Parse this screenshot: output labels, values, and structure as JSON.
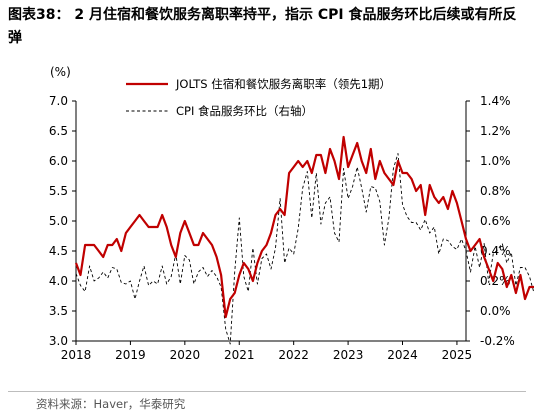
{
  "title": "图表38：  2 月住宿和餐饮服务离职率持平，指示 CPI 食品服务环比后续或有所反弹",
  "source": "资料来源：Haver，华泰研究",
  "colors": {
    "left_series": "#c00000",
    "right_series": "#000000"
  },
  "chart_data": {
    "type": "line",
    "title": "",
    "x_ticks": [
      "2018",
      "2019",
      "2020",
      "2021",
      "2022",
      "2023",
      "2024",
      "2025"
    ],
    "x_range": [
      "2018-01",
      "2025-03"
    ],
    "left_axis": {
      "unit": "(%)",
      "ylim": [
        3.0,
        7.0
      ],
      "ticks": [
        "3.0",
        "3.5",
        "4.0",
        "4.5",
        "5.0",
        "5.5",
        "6.0",
        "6.5",
        "7.0"
      ]
    },
    "right_axis": {
      "ylim": [
        -0.2,
        1.4
      ],
      "ticks": [
        "-0.2%",
        "0.0%",
        "0.2%",
        "0.4%",
        "0.6%",
        "0.8%",
        "1.0%",
        "1.2%",
        "1.4%"
      ]
    },
    "series": [
      {
        "name": "JOLTS 住宿和餐饮服务离职率（领先1期）",
        "axis": "left",
        "style": "solid",
        "start": "2018-01",
        "values": [
          4.3,
          4.1,
          4.6,
          4.6,
          4.6,
          4.5,
          4.4,
          4.6,
          4.6,
          4.7,
          4.5,
          4.8,
          4.9,
          5.0,
          5.1,
          5.0,
          4.9,
          4.9,
          4.9,
          5.1,
          4.9,
          4.6,
          4.4,
          4.8,
          5.0,
          4.8,
          4.6,
          4.6,
          4.8,
          4.7,
          4.6,
          4.4,
          4.1,
          3.4,
          3.7,
          3.8,
          4.1,
          4.3,
          4.2,
          4.0,
          4.3,
          4.5,
          4.6,
          4.8,
          5.1,
          5.2,
          5.1,
          5.8,
          5.9,
          6.0,
          5.9,
          6.0,
          5.8,
          6.1,
          6.1,
          5.8,
          6.2,
          6.0,
          5.7,
          6.4,
          5.9,
          6.1,
          6.3,
          6.0,
          5.8,
          6.2,
          5.7,
          6.0,
          5.8,
          5.7,
          5.6,
          6.0,
          5.8,
          5.8,
          5.7,
          5.5,
          5.6,
          5.1,
          5.6,
          5.4,
          5.3,
          5.4,
          5.2,
          5.5,
          5.3,
          5.0,
          4.7,
          4.5,
          4.6,
          4.7,
          4.4,
          4.2,
          4.0,
          4.3,
          4.2,
          3.9,
          4.1,
          3.8,
          4.1,
          3.7,
          3.9,
          3.9
        ]
      },
      {
        "name": "CPI 食品服务环比（右轴）",
        "axis": "right",
        "style": "dashed",
        "start": "2018-01",
        "values": [
          0.25,
          0.17,
          0.13,
          0.3,
          0.2,
          0.22,
          0.26,
          0.22,
          0.29,
          0.28,
          0.19,
          0.18,
          0.2,
          0.08,
          0.2,
          0.3,
          0.17,
          0.2,
          0.18,
          0.3,
          0.18,
          0.23,
          0.38,
          0.18,
          0.37,
          0.34,
          0.18,
          0.26,
          0.29,
          0.23,
          0.27,
          0.23,
          0.16,
          -0.12,
          -0.22,
          0.26,
          0.62,
          0.23,
          0.13,
          0.42,
          0.18,
          0.35,
          0.38,
          0.28,
          0.42,
          0.75,
          0.32,
          0.42,
          0.38,
          0.55,
          0.82,
          0.93,
          0.62,
          0.92,
          0.58,
          0.72,
          0.76,
          0.52,
          0.46,
          0.95,
          0.75,
          0.83,
          0.96,
          0.82,
          0.66,
          0.83,
          0.82,
          0.73,
          0.44,
          0.62,
          0.95,
          1.05,
          0.71,
          0.63,
          0.59,
          0.59,
          0.54,
          0.61,
          0.52,
          0.56,
          0.38,
          0.48,
          0.47,
          0.43,
          0.41,
          0.48,
          0.4,
          0.26,
          0.43,
          0.29,
          0.45,
          0.19,
          0.38,
          0.41,
          0.45,
          0.32,
          0.39,
          0.17,
          0.29,
          0.29,
          0.23,
          0.12
        ]
      }
    ],
    "grid": false,
    "legend": "top-center"
  }
}
